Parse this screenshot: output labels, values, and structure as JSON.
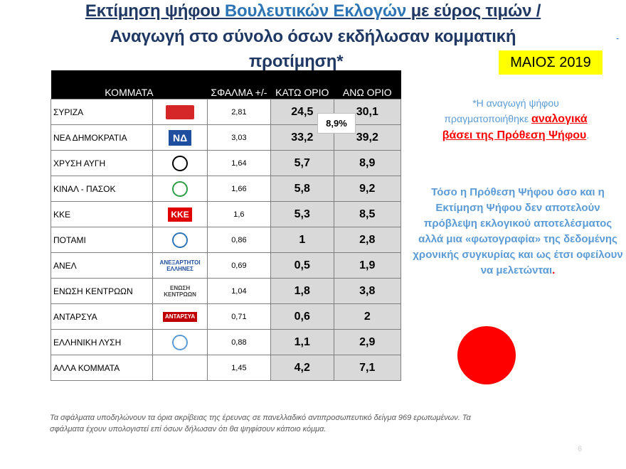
{
  "title": {
    "line1_a": "Εκτίμηση ψήφου",
    "line1_b": "Βουλευτικών Εκλογών",
    "line1_c": "με εύρος τιμών /",
    "line2": "Αναγωγή στο σύνολο όσων εκδήλωσαν κομματική",
    "line3": "προτίμηση*"
  },
  "month_badge": "ΜΑΙΟΣ 2019",
  "table": {
    "headers": {
      "party": "ΚΟΜΜΑΤΑ",
      "error": "ΣΦΑΛΜΑ +/-",
      "low": "ΚΑΤΩ ΟΡΙΟ",
      "high": "ΑΝΩ ΟΡΙΟ"
    },
    "rows": [
      {
        "party": "ΣΥΡΙΖΑ",
        "error": "2,81",
        "low": "24,5",
        "high": "30,1",
        "logo_text": "",
        "logo_color": "#d62728",
        "logo_name": "syriza-logo-icon"
      },
      {
        "party": "ΝΕΑ ΔΗΜΟΚΡΑΤΙΑ",
        "error": "3,03",
        "low": "33,2",
        "high": "39,2",
        "logo_text": "ΝΔ",
        "logo_color": "#1f4e9e",
        "logo_name": "nd-logo-icon"
      },
      {
        "party": "ΧΡΥΣΗ ΑΥΓΗ",
        "error": "1,64",
        "low": "5,7",
        "high": "8,9",
        "logo_text": "",
        "logo_color": "#000000",
        "logo_name": "xa-logo-icon"
      },
      {
        "party": "ΚΙΝΑΛ - ΠΑΣΟΚ",
        "error": "1,66",
        "low": "5,8",
        "high": "9,2",
        "logo_text": "",
        "logo_color": "#2e9e44",
        "logo_name": "kinal-logo-icon"
      },
      {
        "party": "ΚΚΕ",
        "error": "1,6",
        "low": "5,3",
        "high": "8,5",
        "logo_text": "ΚΚΕ",
        "logo_color": "#e00000",
        "logo_name": "kke-logo-icon"
      },
      {
        "party": "ΠΟΤΑΜΙ",
        "error": "0,86",
        "low": "1",
        "high": "2,8",
        "logo_text": "",
        "logo_color": "#2e75b6",
        "logo_name": "potami-logo-icon"
      },
      {
        "party": "ΑΝΕΛ",
        "error": "0,69",
        "low": "0,5",
        "high": "1,9",
        "logo_text": "ΑΝΕΞΑΡΤΗΤΟΙ ΕΛΛΗΝΕΣ",
        "logo_color": "#1f4e9e",
        "logo_name": "anel-logo-icon"
      },
      {
        "party": "ΕΝΩΣΗ ΚΕΝΤΡΩΩΝ",
        "error": "1,04",
        "low": "1,8",
        "high": "3,8",
        "logo_text": "ΕΝΩΣΗ ΚΕΝΤΡΩΩΝ",
        "logo_color": "#404040",
        "logo_name": "ek-logo-icon"
      },
      {
        "party": "ΑΝΤΑΡΣΥΑ",
        "error": "0,71",
        "low": "0,6",
        "high": "2",
        "logo_text": "ΑΝΤΑΡΣΥΑ",
        "logo_color": "#c00000",
        "logo_name": "antarsya-logo-icon"
      },
      {
        "party": "ΕΛΛΗΝΙΚΗ ΛΥΣΗ",
        "error": "0,88",
        "low": "1,1",
        "high": "2,9",
        "logo_text": "",
        "logo_color": "#5b9bd5",
        "logo_name": "el-logo-icon"
      },
      {
        "party": "ΑΛΛΑ ΚΟΜΜΑΤΑ",
        "error": "1,45",
        "low": "4,2",
        "high": "7,1",
        "logo_text": "",
        "logo_color": "",
        "logo_name": ""
      }
    ]
  },
  "difference_label": "8,9%",
  "note1": {
    "a": "*Η αναγωγή ψήφου",
    "b": "πραγματοποιήθηκε",
    "c": "αναλογικά",
    "d": "βάσει της Πρόθεση Ψήφου",
    "e": "."
  },
  "note2": {
    "text": "Τόσο η Πρόθεση Ψήφου όσο και η Εκτίμηση Ψήφου δεν αποτελούν πρόβλεψη εκλογικού αποτελέσματος αλλά μια «φωτογραφία» της δεδομένης χρονικής συγκυρίας και ως έτσι οφείλουν να μελετώνται",
    "dot": "."
  },
  "footnote": "Τα σφάλματα υποδηλώνουν τα όρια ακρίβειας της έρευνας σε πανελλαδικό αντιπροσωπευτικό δείγμα 969 ερωτωμένων. Τα σφάλματα έχουν υπολογιστεί επί όσων δήλωσαν ότι θα ψηφίσουν κάποιο κόμμα.",
  "page_number": "6",
  "colors": {
    "title_dark": "#1f3864",
    "title_blue": "#2e75b6",
    "note_blue": "#5b9bd5",
    "accent_red": "#ff0000",
    "badge_yellow": "#ffff00"
  }
}
